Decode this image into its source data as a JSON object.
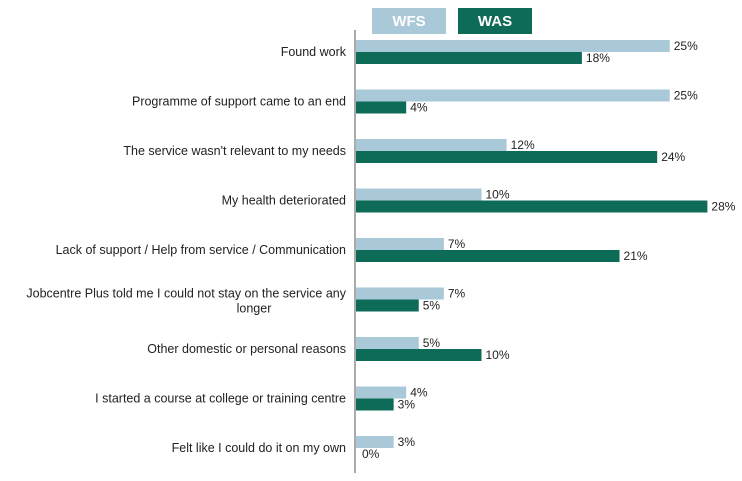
{
  "chart_data": {
    "type": "bar",
    "orientation": "horizontal",
    "categories": [
      "Found work",
      "Programme of support came to an end",
      "The service wasn't relevant to my needs",
      "My health deteriorated",
      "Lack of support / Help from service / Communication",
      "Jobcentre Plus told me I could not stay on the service any longer",
      "Other domestic or personal reasons",
      "I started a course at college or training centre",
      "Felt like I could do it on my own"
    ],
    "series": [
      {
        "name": "WFS",
        "color": "#a9c8d8",
        "values": [
          25,
          25,
          12,
          10,
          7,
          7,
          5,
          4,
          3
        ],
        "labels": [
          "25%",
          "25%",
          "12%",
          "10%",
          "7%",
          "7%",
          "5%",
          "4%",
          "3%"
        ]
      },
      {
        "name": "WAS",
        "color": "#0e6b57",
        "values": [
          18,
          4,
          24,
          28,
          21,
          5,
          10,
          3,
          0
        ],
        "labels": [
          "18%",
          "4%",
          "24%",
          "28%",
          "21%",
          "5%",
          "10%",
          "3%",
          "0%"
        ]
      }
    ],
    "title": "",
    "xlabel": "",
    "ylabel": "",
    "xlim": [
      0,
      30
    ],
    "grid": false,
    "legend_position": "top"
  }
}
